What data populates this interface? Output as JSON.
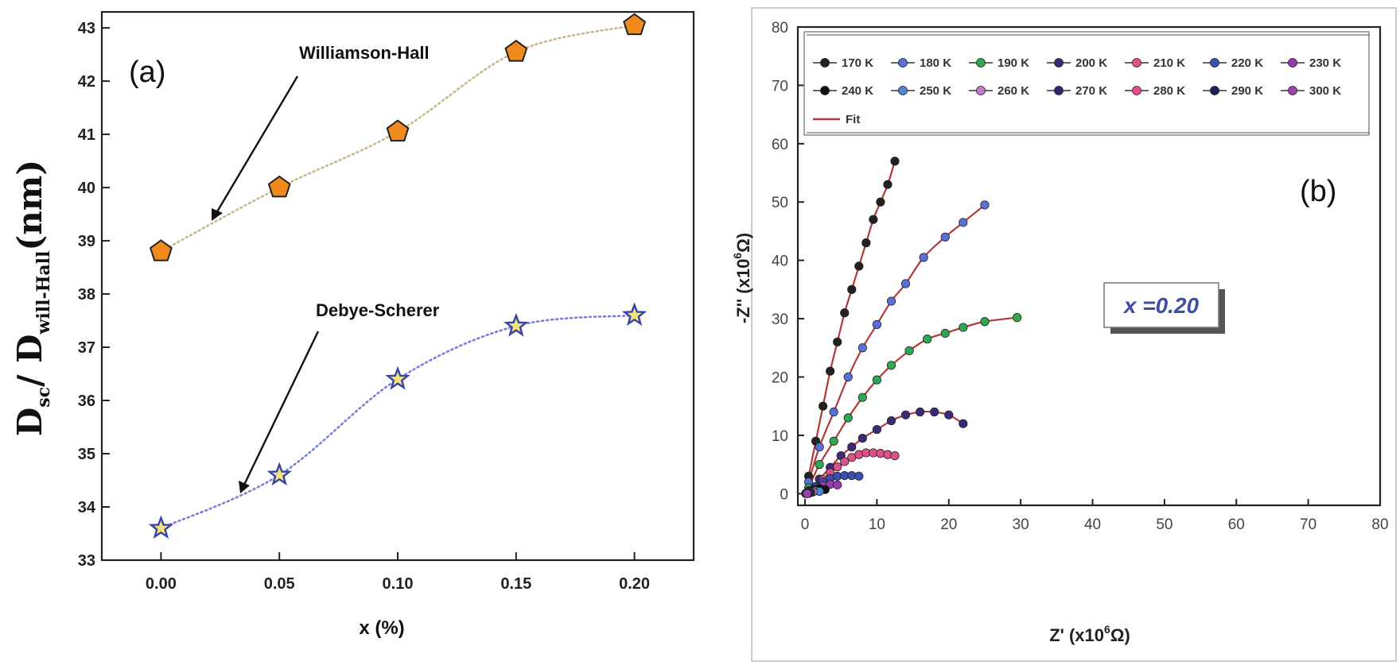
{
  "chart_data": [
    {
      "type": "scatter",
      "panel_label": "(a)",
      "ylabel_main": "D",
      "ylabel_sub1": "sc",
      "ylabel_sep": "/ D",
      "ylabel_sub2": "will-Hall",
      "ylabel_unit": "(nm)",
      "xlabel": "x (%)",
      "xlim": [
        -0.025,
        0.225
      ],
      "ylim": [
        33,
        43.3
      ],
      "xticks": [
        "0.00",
        "0.05",
        "0.10",
        "0.15",
        "0.20"
      ],
      "yticks": [
        "33",
        "34",
        "35",
        "36",
        "37",
        "38",
        "39",
        "40",
        "41",
        "42",
        "43"
      ],
      "series": [
        {
          "name": "Williamson-Hall",
          "marker": "pentagon",
          "color": "#f08a1c",
          "line_color": "#c8b98a",
          "x": [
            0.0,
            0.05,
            0.1,
            0.15,
            0.2
          ],
          "y": [
            38.8,
            40.0,
            41.05,
            42.55,
            43.05
          ]
        },
        {
          "name": "Debye-Scherer",
          "marker": "star",
          "color": "#f4e27a",
          "line_color": "#7a7ed8",
          "x": [
            0.0,
            0.05,
            0.1,
            0.15,
            0.2
          ],
          "y": [
            33.6,
            34.6,
            36.4,
            37.4,
            37.6
          ]
        }
      ],
      "annotations": [
        {
          "text": "Williamson-Hall",
          "points_to_series": "Williamson-Hall"
        },
        {
          "text": "Debye-Scherer",
          "points_to_series": "Debye-Scherer"
        }
      ]
    },
    {
      "type": "scatter",
      "panel_label": "(b)",
      "xlabel_main": "Z' (x10",
      "xlabel_exp": "6",
      "xlabel_end": "Ω)",
      "ylabel_main": "-Z'' (x10",
      "ylabel_exp": "6",
      "ylabel_end": "Ω)",
      "xlim": [
        -1,
        80
      ],
      "ylim": [
        -2,
        80
      ],
      "xticks": [
        "0",
        "10",
        "20",
        "30",
        "40",
        "50",
        "60",
        "70",
        "80"
      ],
      "yticks": [
        "0",
        "10",
        "20",
        "30",
        "40",
        "50",
        "60",
        "70",
        "80"
      ],
      "inset_text": "x =0.20",
      "fit_label": "Fit",
      "fit_color": "#b03a3a",
      "series": [
        {
          "name": "170 K",
          "color": "#222222",
          "x": [
            0.5,
            1.5,
            2.5,
            3.5,
            4.5,
            5.5,
            6.5,
            7.5,
            8.5,
            9.5,
            10.5,
            11.5,
            12.5
          ],
          "y": [
            3,
            9,
            15,
            21,
            26,
            31,
            35,
            39,
            43,
            47,
            50,
            53,
            57
          ]
        },
        {
          "name": "180 K",
          "color": "#5b6fd6",
          "x": [
            0.5,
            2,
            4,
            6,
            8,
            10,
            12,
            14,
            16.5,
            19.5,
            22,
            25
          ],
          "y": [
            2,
            8,
            14,
            20,
            25,
            29,
            33,
            36,
            40.5,
            44,
            46.5,
            49.5
          ]
        },
        {
          "name": "190 K",
          "color": "#2fa84f",
          "x": [
            0.5,
            2,
            4,
            6,
            8,
            10,
            12,
            14.5,
            17,
            19.5,
            22,
            25,
            29.5
          ],
          "y": [
            1,
            5,
            9,
            13,
            16.5,
            19.5,
            22,
            24.5,
            26.5,
            27.5,
            28.5,
            29.5,
            30.2
          ]
        },
        {
          "name": "200 K",
          "color": "#3b2a7a",
          "x": [
            0.5,
            2,
            3.5,
            5,
            6.5,
            8,
            10,
            12,
            14,
            16,
            18,
            20,
            22
          ],
          "y": [
            0.5,
            2.5,
            4.5,
            6.5,
            8,
            9.5,
            11,
            12.5,
            13.5,
            14,
            14,
            13.5,
            12
          ]
        },
        {
          "name": "210 K",
          "color": "#e0508a",
          "x": [
            0.5,
            1.5,
            2.5,
            3.5,
            4.5,
            5.5,
            6.5,
            7.5,
            8.5,
            9.5,
            10.5,
            11.5,
            12.5
          ],
          "y": [
            0.2,
            1.2,
            2.4,
            3.6,
            4.6,
            5.5,
            6.2,
            6.7,
            7,
            7,
            6.9,
            6.7,
            6.5
          ]
        },
        {
          "name": "220 K",
          "color": "#3b4fb0",
          "x": [
            0.5,
            1.5,
            2.5,
            3.5,
            4.5,
            5.5,
            6.5,
            7.5
          ],
          "y": [
            0.3,
            1.2,
            2,
            2.6,
            3,
            3.1,
            3.1,
            3
          ]
        },
        {
          "name": "230 K",
          "color": "#9a3ab0",
          "x": [
            0.5,
            1.5,
            2.5,
            3.5,
            4.5
          ],
          "y": [
            0.2,
            0.8,
            1.4,
            1.6,
            1.5
          ]
        },
        {
          "name": "240 K",
          "color": "#111111",
          "x": [
            0.5,
            1.2,
            2,
            2.8
          ],
          "y": [
            0.2,
            0.7,
            0.9,
            0.7
          ]
        },
        {
          "name": "250 K",
          "color": "#4f86d8",
          "x": [
            0.3,
            0.8,
            1.4,
            2
          ],
          "y": [
            0.1,
            0.4,
            0.5,
            0.4
          ]
        },
        {
          "name": "260 K",
          "color": "#c77ac9",
          "x": [
            0.3,
            0.7,
            1.1
          ],
          "y": [
            0.1,
            0.3,
            0.3
          ]
        },
        {
          "name": "270 K",
          "color": "#2a2a6a",
          "x": [
            0.2,
            0.5,
            0.8
          ],
          "y": [
            0.1,
            0.2,
            0.2
          ]
        },
        {
          "name": "280 K",
          "color": "#e84a8a",
          "x": [
            0.2,
            0.4,
            0.6
          ],
          "y": [
            0.05,
            0.15,
            0.1
          ]
        },
        {
          "name": "290 K",
          "color": "#1f1f5a",
          "x": [
            0.1,
            0.3,
            0.5
          ],
          "y": [
            0.05,
            0.1,
            0.05
          ]
        },
        {
          "name": "300 K",
          "color": "#9a40b0",
          "x": [
            0.1,
            0.2,
            0.3
          ],
          "y": [
            0.02,
            0.05,
            0.02
          ]
        }
      ]
    }
  ]
}
